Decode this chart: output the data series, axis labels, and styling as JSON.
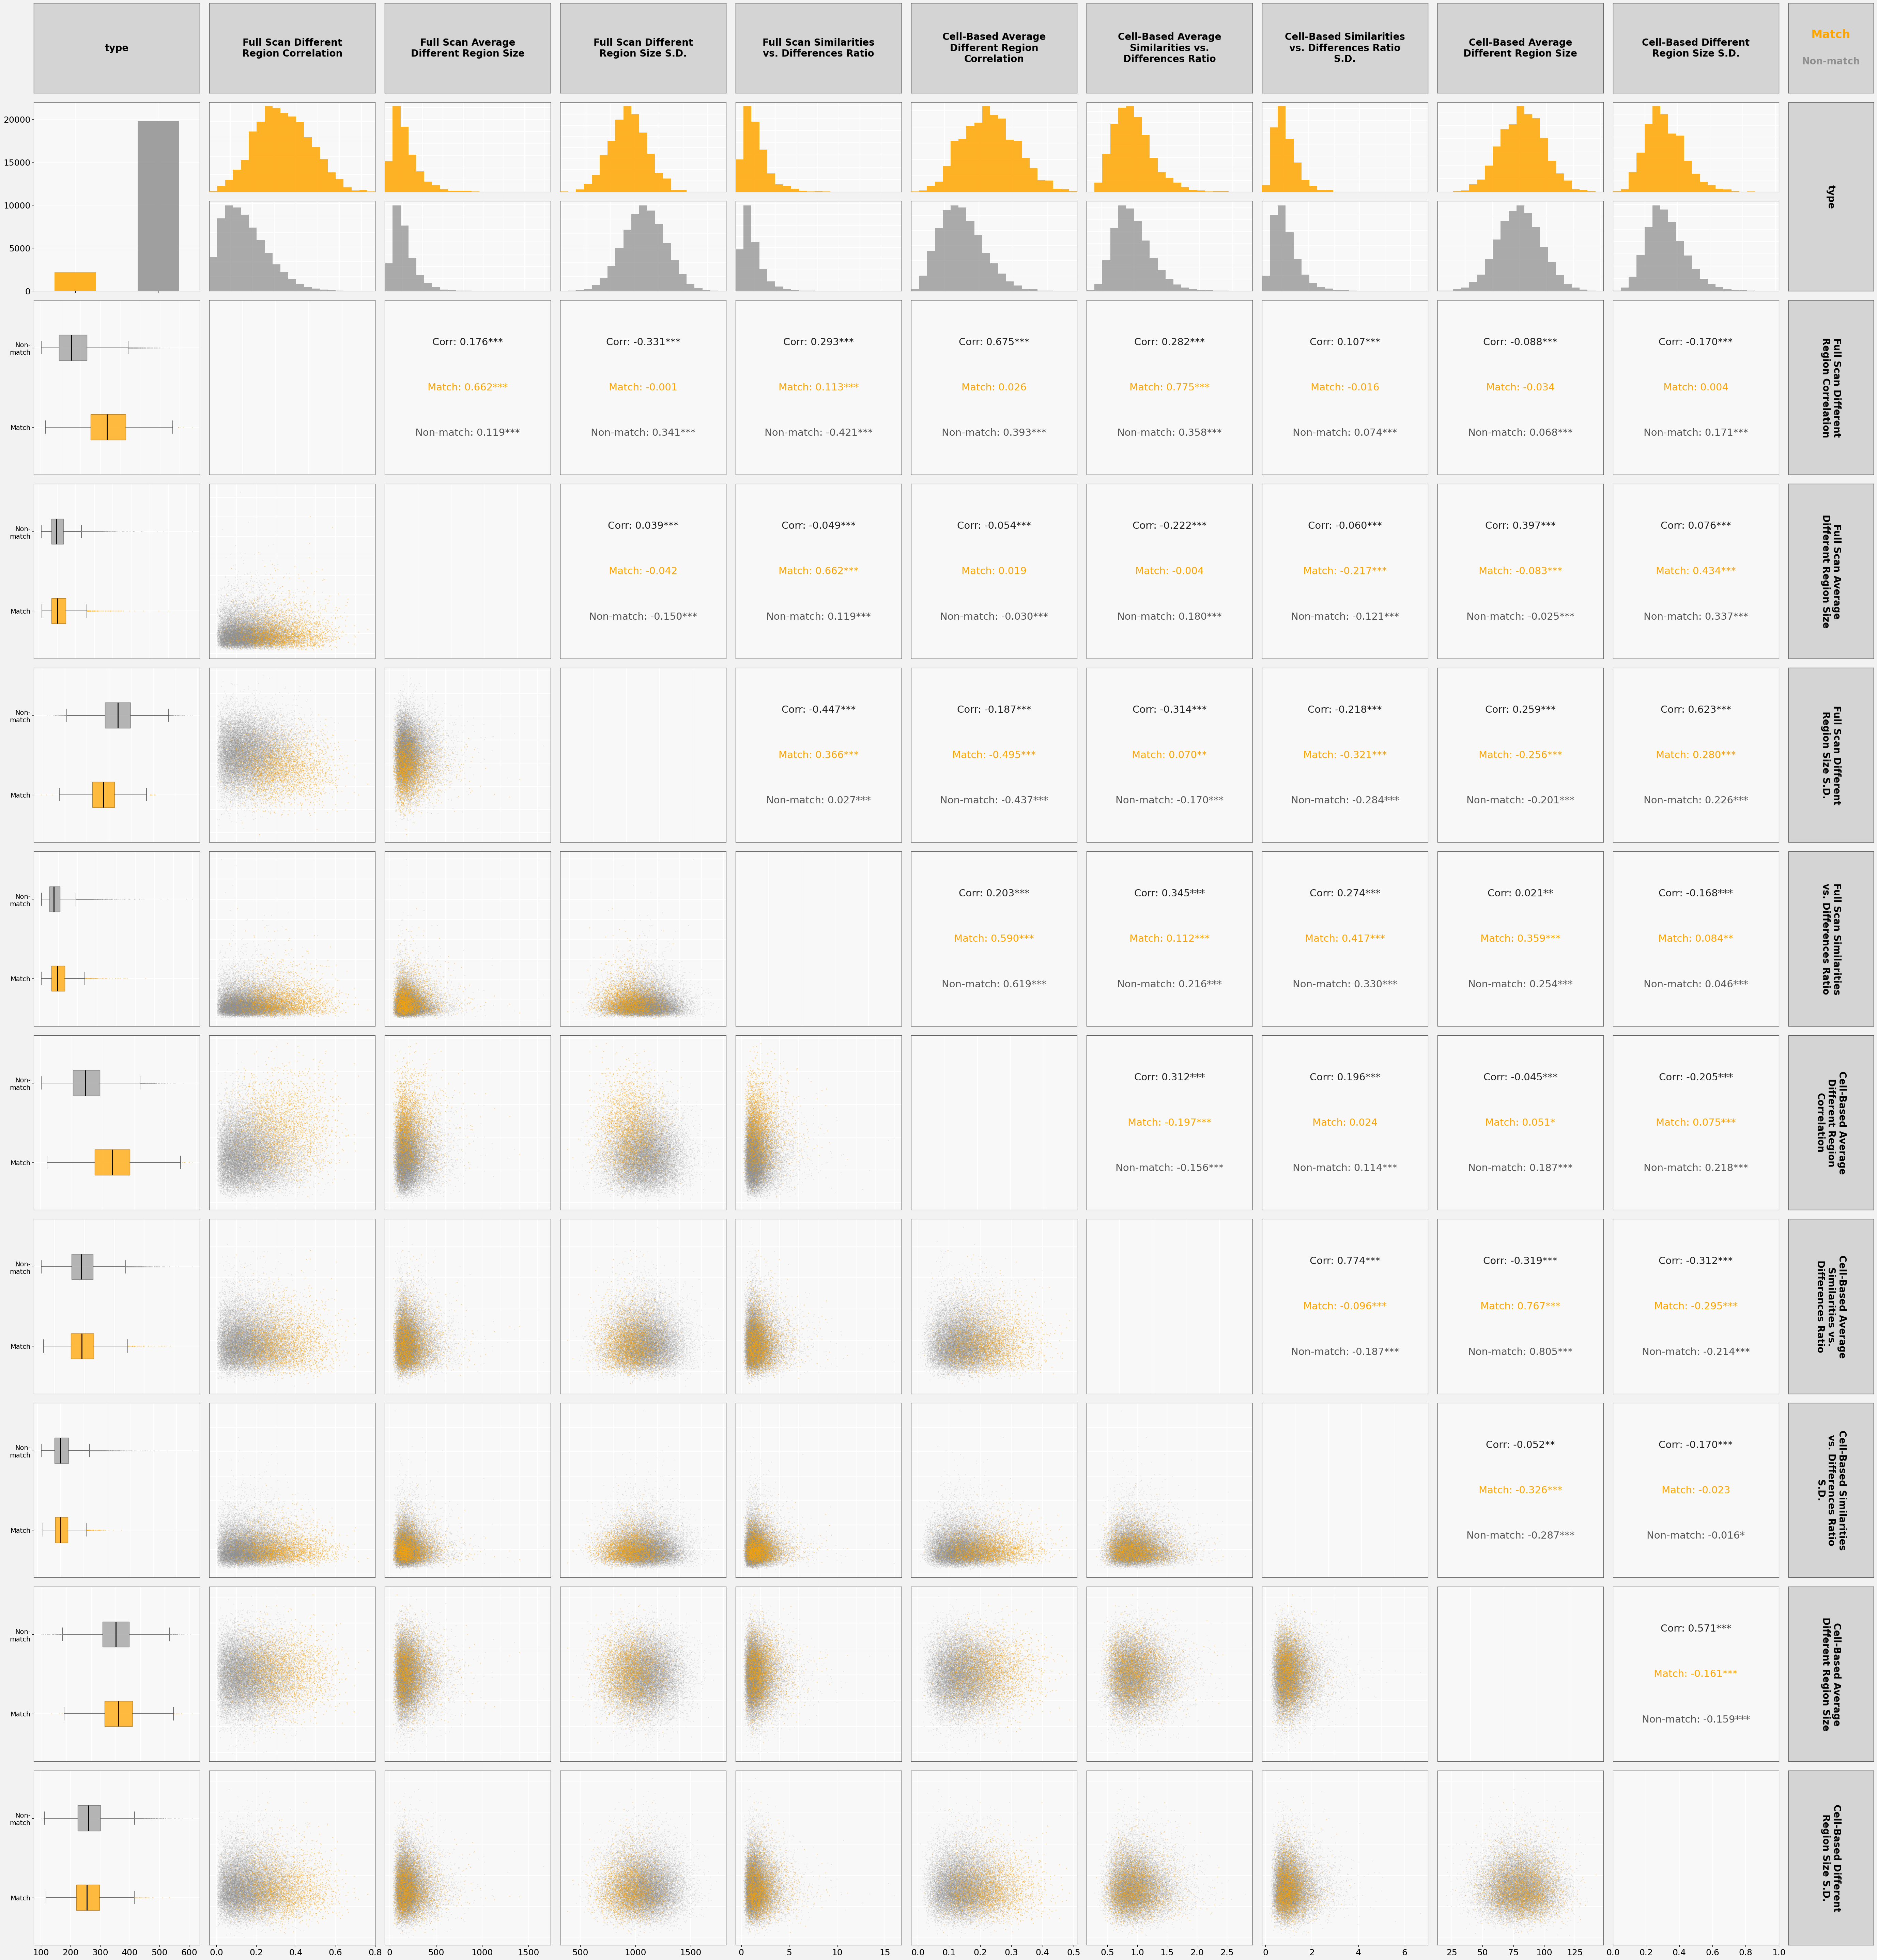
{
  "n_match": 2189,
  "n_nonmatch": 19756,
  "match_color": "#FFA500",
  "nonmatch_color": "#909090",
  "variables": [
    "type",
    "Full Scan Different\nRegion Correlation",
    "Full Scan Average\nDifferent Region Size",
    "Full Scan Different\nRegion Size S.D.",
    "Full Scan Similarities\nvs. Differences Ratio",
    "Cell-Based Average\nDifferent Region\nCorrelation",
    "Cell-Based Average\nSimilarities vs.\nDifferences Ratio",
    "Cell-Based Similarities\nvs. Differences Ratio\nS.D.",
    "Cell-Based Average\nDifferent Region Size",
    "Cell-Based Different\nRegion Size S.D."
  ],
  "var_short": [
    "type",
    "fs_corr",
    "fs_avg_size",
    "fs_sd",
    "fs_ratio",
    "cb_corr",
    "cb_ratio",
    "cb_ratio_sd",
    "cb_avg_size",
    "cb_sd"
  ],
  "corr_data": {
    "fs_corr_vs_fs_avg_size": {
      "corr": 0.176,
      "match": 0.662,
      "match_sig": "***",
      "nonmatch": 0.119,
      "nonmatch_sig": "***",
      "sig": "***"
    },
    "fs_corr_vs_fs_sd": {
      "corr": -0.331,
      "match": -0.001,
      "match_sig": "",
      "nonmatch": 0.341,
      "nonmatch_sig": "***",
      "sig": "***"
    },
    "fs_corr_vs_fs_ratio": {
      "corr": 0.293,
      "match": 0.113,
      "match_sig": "***",
      "nonmatch": -0.421,
      "nonmatch_sig": "***",
      "sig": "***"
    },
    "fs_corr_vs_cb_corr": {
      "corr": 0.675,
      "match": 0.026,
      "match_sig": "",
      "nonmatch": 0.393,
      "nonmatch_sig": "***",
      "sig": "***"
    },
    "fs_corr_vs_cb_ratio": {
      "corr": 0.282,
      "match": 0.775,
      "match_sig": "***",
      "nonmatch": 0.358,
      "nonmatch_sig": "***",
      "sig": "***"
    },
    "fs_corr_vs_cb_ratio_sd": {
      "corr": 0.107,
      "match": -0.016,
      "match_sig": "",
      "nonmatch": 0.074,
      "nonmatch_sig": "***",
      "sig": "***"
    },
    "fs_corr_vs_cb_avg_size": {
      "corr": -0.088,
      "match": -0.034,
      "match_sig": "",
      "nonmatch": 0.068,
      "nonmatch_sig": "***",
      "sig": "***"
    },
    "fs_corr_vs_cb_sd": {
      "corr": -0.17,
      "match": 0.004,
      "match_sig": "",
      "nonmatch": 0.171,
      "nonmatch_sig": "***",
      "sig": "***"
    },
    "fs_avg_size_vs_fs_sd": {
      "corr": 0.039,
      "match": -0.042,
      "match_sig": "",
      "nonmatch": -0.15,
      "nonmatch_sig": "***",
      "sig": "***"
    },
    "fs_avg_size_vs_fs_ratio": {
      "corr": -0.049,
      "match": 0.662,
      "match_sig": "***",
      "nonmatch": 0.119,
      "nonmatch_sig": "***",
      "sig": "***"
    },
    "fs_avg_size_vs_cb_corr": {
      "corr": -0.054,
      "match": 0.019,
      "match_sig": "",
      "nonmatch": -0.03,
      "nonmatch_sig": "***",
      "sig": "***"
    },
    "fs_avg_size_vs_cb_ratio": {
      "corr": -0.222,
      "match": -0.004,
      "match_sig": "",
      "nonmatch": 0.18,
      "nonmatch_sig": "***",
      "sig": "***"
    },
    "fs_avg_size_vs_cb_ratio_sd": {
      "corr": -0.06,
      "match": -0.217,
      "match_sig": "***",
      "nonmatch": -0.121,
      "nonmatch_sig": "***",
      "sig": "***"
    },
    "fs_avg_size_vs_cb_avg_size": {
      "corr": 0.397,
      "match": -0.083,
      "match_sig": "***",
      "nonmatch": -0.025,
      "nonmatch_sig": "***",
      "sig": "***"
    },
    "fs_avg_size_vs_cb_sd": {
      "corr": 0.076,
      "match": 0.434,
      "match_sig": "***",
      "nonmatch": 0.337,
      "nonmatch_sig": "***",
      "sig": "***"
    },
    "fs_sd_vs_fs_ratio": {
      "corr": -0.447,
      "match": 0.366,
      "match_sig": "***",
      "nonmatch": 0.027,
      "nonmatch_sig": "***",
      "sig": "***"
    },
    "fs_sd_vs_cb_corr": {
      "corr": -0.187,
      "match": -0.495,
      "match_sig": "***",
      "nonmatch": -0.437,
      "nonmatch_sig": "***",
      "sig": "***"
    },
    "fs_sd_vs_cb_ratio": {
      "corr": -0.314,
      "match": 0.07,
      "match_sig": "**",
      "nonmatch": -0.17,
      "nonmatch_sig": "***",
      "sig": "***"
    },
    "fs_sd_vs_cb_ratio_sd": {
      "corr": -0.218,
      "match": -0.321,
      "match_sig": "***",
      "nonmatch": -0.284,
      "nonmatch_sig": "***",
      "sig": "***"
    },
    "fs_sd_vs_cb_avg_size": {
      "corr": 0.259,
      "match": -0.256,
      "match_sig": "***",
      "nonmatch": -0.201,
      "nonmatch_sig": "***",
      "sig": "***"
    },
    "fs_sd_vs_cb_sd": {
      "corr": 0.623,
      "match": 0.28,
      "match_sig": "***",
      "nonmatch": 0.226,
      "nonmatch_sig": "***",
      "sig": "***"
    },
    "fs_ratio_vs_cb_corr": {
      "corr": 0.203,
      "match": 0.59,
      "match_sig": "***",
      "nonmatch": 0.619,
      "nonmatch_sig": "***",
      "sig": "***"
    },
    "fs_ratio_vs_cb_ratio": {
      "corr": 0.345,
      "match": 0.112,
      "match_sig": "***",
      "nonmatch": 0.216,
      "nonmatch_sig": "***",
      "sig": "***"
    },
    "fs_ratio_vs_cb_ratio_sd": {
      "corr": 0.274,
      "match": 0.417,
      "match_sig": "***",
      "nonmatch": 0.33,
      "nonmatch_sig": "***",
      "sig": "***"
    },
    "fs_ratio_vs_cb_avg_size": {
      "corr": 0.021,
      "match": 0.359,
      "match_sig": "***",
      "nonmatch": 0.254,
      "nonmatch_sig": "***",
      "sig": "**"
    },
    "fs_ratio_vs_cb_sd": {
      "corr": -0.168,
      "match": 0.084,
      "match_sig": "**",
      "nonmatch": 0.046,
      "nonmatch_sig": "***",
      "sig": "***"
    },
    "cb_corr_vs_cb_ratio": {
      "corr": 0.312,
      "match": -0.197,
      "match_sig": "***",
      "nonmatch": -0.156,
      "nonmatch_sig": "***",
      "sig": "***"
    },
    "cb_corr_vs_cb_ratio_sd": {
      "corr": 0.196,
      "match": 0.024,
      "match_sig": "",
      "nonmatch": 0.114,
      "nonmatch_sig": "***",
      "sig": "***"
    },
    "cb_corr_vs_cb_avg_size": {
      "corr": -0.045,
      "match": 0.051,
      "match_sig": "*",
      "nonmatch": 0.187,
      "nonmatch_sig": "***",
      "sig": "***"
    },
    "cb_corr_vs_cb_sd": {
      "corr": -0.205,
      "match": 0.075,
      "match_sig": "***",
      "nonmatch": 0.218,
      "nonmatch_sig": "***",
      "sig": "***"
    },
    "cb_ratio_vs_cb_ratio_sd": {
      "corr": 0.774,
      "match": -0.096,
      "match_sig": "***",
      "nonmatch": -0.187,
      "nonmatch_sig": "***",
      "sig": "***"
    },
    "cb_ratio_vs_cb_avg_size": {
      "corr": -0.319,
      "match": 0.767,
      "match_sig": "***",
      "nonmatch": 0.805,
      "nonmatch_sig": "***",
      "sig": "***"
    },
    "cb_ratio_vs_cb_sd": {
      "corr": -0.312,
      "match": -0.295,
      "match_sig": "***",
      "nonmatch": -0.214,
      "nonmatch_sig": "***",
      "sig": "***"
    },
    "cb_ratio_sd_vs_cb_avg_size": {
      "corr": -0.052,
      "match": -0.326,
      "match_sig": "***",
      "nonmatch": -0.287,
      "nonmatch_sig": "***",
      "sig": "**"
    },
    "cb_ratio_sd_vs_cb_sd": {
      "corr": -0.17,
      "match": -0.023,
      "match_sig": "",
      "nonmatch": -0.016,
      "nonmatch_sig": "*",
      "sig": "***"
    },
    "cb_avg_size_vs_cb_sd": {
      "corr": 0.571,
      "match": -0.161,
      "match_sig": "***",
      "nonmatch": -0.159,
      "nonmatch_sig": "***",
      "sig": "***"
    }
  },
  "background_color": "#f2f2f2",
  "header_color": "#d4d4d4",
  "plot_bg": "#f8f8f8",
  "grid_color": "white"
}
